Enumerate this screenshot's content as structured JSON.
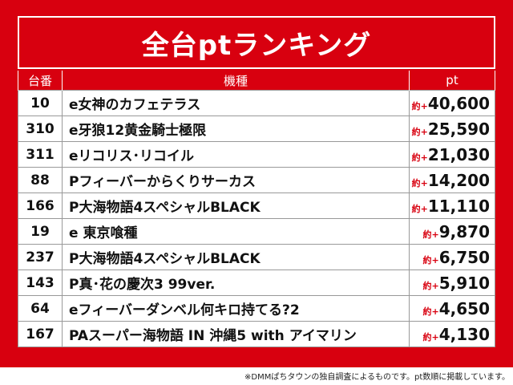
{
  "header": {
    "title": "全台ptランキング"
  },
  "table": {
    "columns": [
      "台番",
      "機種",
      "pt"
    ],
    "rows": [
      {
        "no": "10",
        "name": "e女神のカフェテラス",
        "pt_prefix": "約+",
        "pt": "40,600"
      },
      {
        "no": "310",
        "name": "e牙狼12黄金騎士極限",
        "pt_prefix": "約+",
        "pt": "25,590"
      },
      {
        "no": "311",
        "name": "eリコリス･リコイル",
        "pt_prefix": "約+",
        "pt": "21,030"
      },
      {
        "no": "88",
        "name": "Pフィーバーからくりサーカス",
        "pt_prefix": "約+",
        "pt": "14,200"
      },
      {
        "no": "166",
        "name": "P大海物語4スペシャルBLACK",
        "pt_prefix": "約+",
        "pt": "11,110"
      },
      {
        "no": "19",
        "name": "e 東京喰種",
        "pt_prefix": "約+",
        "pt": "9,870"
      },
      {
        "no": "237",
        "name": "P大海物語4スペシャルBLACK",
        "pt_prefix": "約+",
        "pt": "6,750"
      },
      {
        "no": "143",
        "name": "P真･花の慶次3 99ver.",
        "pt_prefix": "約+",
        "pt": "5,910"
      },
      {
        "no": "64",
        "name": "eフィーバーダンベル何キロ持てる?2",
        "pt_prefix": "約+",
        "pt": "4,650"
      },
      {
        "no": "167",
        "name": "PAスーパー海物語 IN 沖縄5 with アイマリン",
        "pt_prefix": "約+",
        "pt": "4,130"
      }
    ]
  },
  "footer": {
    "note": "※DMMぱちタウンの独自調査によるものです。pt数順に掲載しています。"
  }
}
